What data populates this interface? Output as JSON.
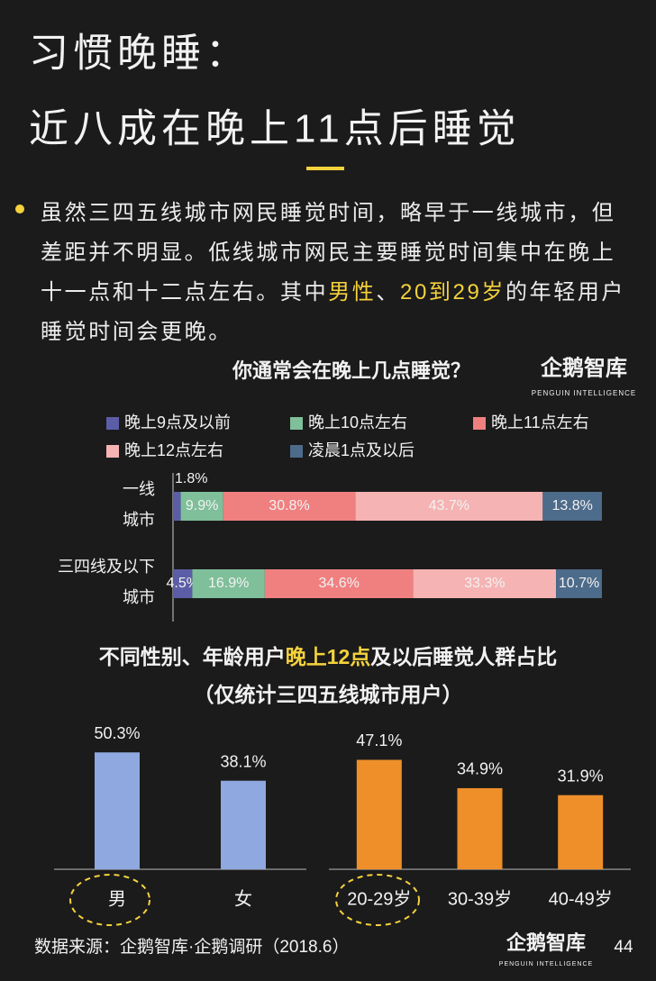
{
  "header": {
    "title_lines": [
      "习惯晚睡：",
      "近八成在晚上11点后睡觉"
    ]
  },
  "paragraph": [
    "虽然三四五线城市网民睡觉时间，略早于一线城市，但差距并不明显。低线城市网民主要睡觉时间集中在晚上十一点和十二点左右。其中",
    "男性",
    "、",
    "20到29岁",
    "的年轻用户睡觉时间会更晚。"
  ],
  "logo": {
    "name": "企鹅智库",
    "tagline": "PENGUIN INTELLIGENCE"
  },
  "chart_data": [
    {
      "type": "stacked_bar",
      "title": "你通常会在晚上几点睡觉？",
      "categories": [
        [
          "一线",
          "城市"
        ],
        [
          "三四线及以下",
          "城市"
        ]
      ],
      "series": [
        {
          "name": "晚上9点及以前",
          "color": "#5b5ea6",
          "values": [
            1.8,
            4.5
          ],
          "value_labels": [
            "1.8%",
            "4.5%"
          ]
        },
        {
          "name": "晚上10点左右",
          "color": "#7fbf9a",
          "values": [
            9.9,
            16.9
          ],
          "value_labels": [
            "9.9%",
            "16.9%"
          ]
        },
        {
          "name": "晚上11点左右",
          "color": "#f08080",
          "values": [
            30.8,
            34.6
          ],
          "value_labels": [
            "30.8%",
            "34.6%"
          ]
        },
        {
          "name": "晚上12点左右",
          "color": "#f6b3b3",
          "values": [
            43.7,
            33.3
          ],
          "value_labels": [
            "43.7%",
            "33.3%"
          ]
        },
        {
          "name": "凌晨1点及以后",
          "color": "#4d6b8a",
          "values": [
            13.8,
            10.7
          ],
          "value_labels": [
            "13.8%",
            "10.7%"
          ]
        }
      ]
    },
    {
      "type": "bar",
      "title": [
        "不同性别、年龄用户",
        "晚上12点",
        "及以后睡觉人群占比"
      ],
      "subtitle": "（仅统计三四五线城市用户）",
      "categories": [
        "男",
        "女"
      ],
      "values": [
        50.3,
        38.1
      ],
      "value_labels": [
        "50.3%",
        "38.1%"
      ],
      "color": "#8fa8df"
    },
    {
      "type": "bar",
      "categories": [
        "20-29岁",
        "30-39岁",
        "40-49岁"
      ],
      "values": [
        47.1,
        34.9,
        31.9
      ],
      "value_labels": [
        "47.1%",
        "34.9%",
        "31.9%"
      ],
      "color": "#ee8f2a"
    }
  ],
  "footer": {
    "source": "数据来源：企鹅智库·企鹅调研（2018.6）",
    "page": "44"
  }
}
